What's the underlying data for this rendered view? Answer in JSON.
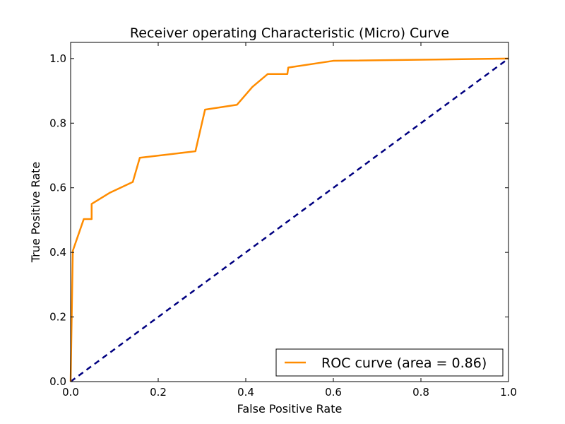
{
  "chart_data": {
    "type": "line",
    "title": "Receiver operating Characteristic (Micro) Curve",
    "xlabel": "False Positive Rate",
    "ylabel": "True Positive Rate",
    "xlim": [
      0.0,
      1.0
    ],
    "ylim": [
      0.0,
      1.05
    ],
    "xticks": [
      0.0,
      0.2,
      0.4,
      0.6,
      0.8,
      1.0
    ],
    "yticks": [
      0.0,
      0.2,
      0.4,
      0.6,
      0.8,
      1.0
    ],
    "xtick_labels": [
      "0.0",
      "0.2",
      "0.4",
      "0.6",
      "0.8",
      "1.0"
    ],
    "ytick_labels": [
      "0.0",
      "0.2",
      "0.4",
      "0.6",
      "0.8",
      "1.0"
    ],
    "grid": false,
    "legend_position": "lower-right",
    "series": [
      {
        "name": "ROC curve (area = 0.86)",
        "color": "#ff8c00",
        "style": "solid",
        "x": [
          0.0,
          0.005,
          0.03,
          0.048,
          0.048,
          0.09,
          0.142,
          0.158,
          0.285,
          0.307,
          0.38,
          0.415,
          0.45,
          0.495,
          0.497,
          0.6,
          1.0
        ],
        "y": [
          0.0,
          0.405,
          0.503,
          0.503,
          0.55,
          0.585,
          0.618,
          0.693,
          0.713,
          0.842,
          0.857,
          0.912,
          0.952,
          0.952,
          0.972,
          0.993,
          1.0
        ]
      },
      {
        "name": "",
        "color": "#000080",
        "style": "dashed",
        "x": [
          0.0,
          1.0
        ],
        "y": [
          0.0,
          1.0
        ]
      }
    ]
  }
}
